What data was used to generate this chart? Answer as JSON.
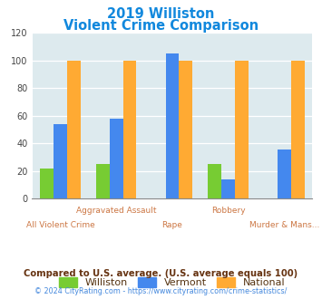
{
  "title_line1": "2019 Williston",
  "title_line2": "Violent Crime Comparison",
  "categories": [
    "All Violent Crime",
    "Aggravated Assault",
    "Rape",
    "Robbery",
    "Murder & Mans..."
  ],
  "top_labels": [
    "",
    "Aggravated Assault",
    "",
    "Robbery",
    ""
  ],
  "bottom_labels": [
    "All Violent Crime",
    "",
    "Rape",
    "",
    "Murder & Mans..."
  ],
  "series": {
    "Williston": [
      22,
      25,
      0,
      25,
      0
    ],
    "Vermont": [
      54,
      58,
      105,
      14,
      36
    ],
    "National": [
      100,
      100,
      100,
      100,
      100
    ]
  },
  "colors": {
    "Williston": "#77cc33",
    "Vermont": "#4488ee",
    "National": "#ffaa33"
  },
  "ylim": [
    0,
    120
  ],
  "yticks": [
    0,
    20,
    40,
    60,
    80,
    100,
    120
  ],
  "plot_bg": "#ddeaee",
  "title_color": "#1188dd",
  "axis_label_color": "#cc7744",
  "legend_label_color": "#553311",
  "footer_text": "Compared to U.S. average. (U.S. average equals 100)",
  "copyright_text": "© 2024 CityRating.com - https://www.cityrating.com/crime-statistics/",
  "footer_color": "#663311",
  "copyright_color": "#4488dd"
}
